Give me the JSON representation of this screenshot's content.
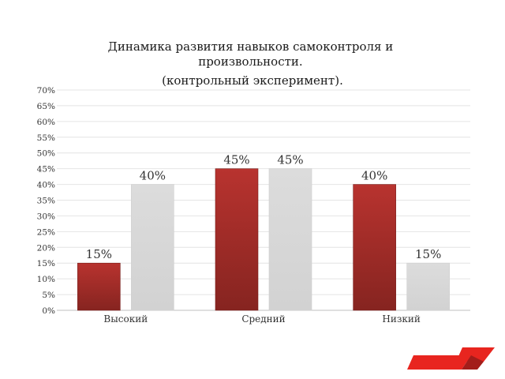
{
  "chart_data": {
    "type": "bar",
    "title": "Динамика развития навыков самоконтроля и произвольности. (контрольный эксперимент).",
    "title_lines": [
      "Динамика развития навыков самоконтроля и",
      "произвольности.",
      "(контрольный эксперимент)."
    ],
    "categories": [
      "Высокий",
      "Средний",
      "Низкий"
    ],
    "series": [
      {
        "values": [
          15,
          45,
          40
        ],
        "color": "#a52a2a"
      },
      {
        "values": [
          40,
          45,
          15
        ],
        "color": "#d9d9d9"
      }
    ],
    "data_labels": [
      [
        "15%",
        "45%",
        "40%"
      ],
      [
        "40%",
        "45%",
        "15%"
      ]
    ],
    "ylim": [
      0,
      70
    ],
    "ytick_step": 5,
    "ytick_labels": [
      "0%",
      "5%",
      "10%",
      "15%",
      "20%",
      "25%",
      "30%",
      "35%",
      "40%",
      "45%",
      "50%",
      "55%",
      "60%",
      "65%",
      "70%"
    ],
    "grid": true,
    "legend": "none",
    "xlabel": "",
    "ylabel": ""
  },
  "decoration": {
    "accent_color": "#e8251f",
    "accent_dark": "#a31d1a"
  }
}
